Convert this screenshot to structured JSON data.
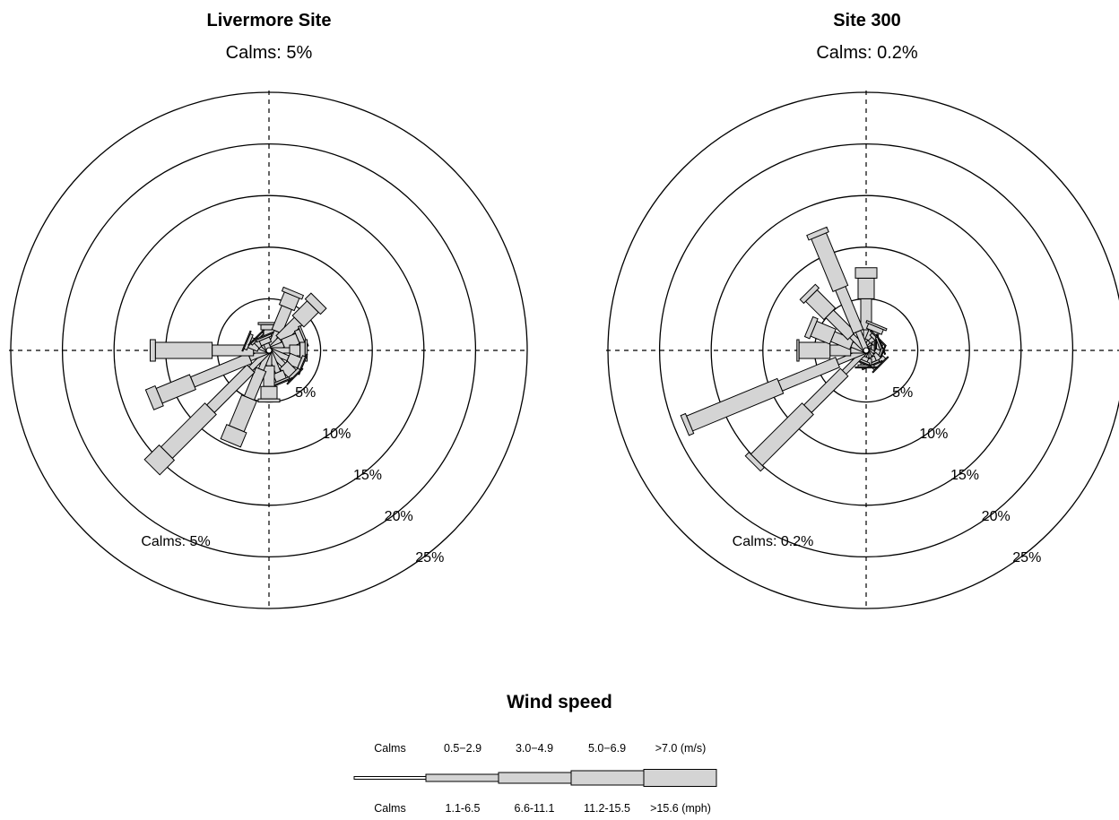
{
  "chart_data": [
    {
      "type": "windrose",
      "title": "Livermore Site",
      "subtitle": "Calms: 5%",
      "calms_label": "Calms: 5%",
      "calms_percent": 5,
      "ring_labels": [
        "5%",
        "10%",
        "15%",
        "20%",
        "25%"
      ],
      "rmax": 25,
      "directions_deg": [
        0,
        22.5,
        45,
        67.5,
        90,
        112.5,
        135,
        157.5,
        180,
        202.5,
        225,
        247.5,
        270,
        292.5,
        315,
        337.5
      ],
      "speed_bins": [
        "0.5-2.9",
        "3.0-4.9",
        "5.0-6.9",
        ">7.0"
      ],
      "frequencies_percent": [
        [
          1.0,
          1.0,
          0.5,
          0.2
        ],
        [
          2.0,
          2.5,
          1.3,
          0.4
        ],
        [
          1.5,
          2.5,
          2.0,
          0.8
        ],
        [
          1.5,
          1.5,
          0.5,
          0.2
        ],
        [
          2.0,
          1.0,
          0.5,
          0.2
        ],
        [
          2.0,
          1.2,
          0.3,
          0.1
        ],
        [
          2.0,
          1.2,
          0.3,
          0.1
        ],
        [
          2.3,
          0.8,
          0.2,
          0.1
        ],
        [
          1.5,
          2.0,
          1.2,
          0.3
        ],
        [
          2.0,
          3.0,
          3.2,
          1.5
        ],
        [
          2.5,
          5.5,
          6.0,
          2.0
        ],
        [
          2.0,
          6.0,
          3.5,
          1.0
        ],
        [
          1.5,
          4.0,
          5.5,
          0.5
        ],
        [
          1.0,
          1.0,
          0.3,
          0.1
        ],
        [
          0.8,
          0.7,
          0.2,
          0.1
        ],
        [
          0.7,
          0.5,
          0.2,
          0.1
        ]
      ]
    },
    {
      "type": "windrose",
      "title": "Site 300",
      "subtitle": "Calms: 0.2%",
      "calms_label": "Calms: 0.2%",
      "calms_percent": 0.2,
      "ring_labels": [
        "5%",
        "10%",
        "15%",
        "20%",
        "25%"
      ],
      "rmax": 25,
      "directions_deg": [
        0,
        22.5,
        45,
        67.5,
        90,
        112.5,
        135,
        157.5,
        180,
        202.5,
        225,
        247.5,
        270,
        292.5,
        315,
        337.5
      ],
      "speed_bins": [
        "0.5-2.9",
        "3.0-4.9",
        "5.0-6.9",
        ">7.0"
      ],
      "frequencies_percent": [
        [
          2.0,
          3.0,
          2.0,
          1.0
        ],
        [
          1.0,
          1.0,
          0.5,
          0.2
        ],
        [
          0.8,
          0.5,
          0.3,
          0.1
        ],
        [
          0.8,
          0.5,
          0.2,
          0.1
        ],
        [
          0.5,
          0.3,
          0.1,
          0.1
        ],
        [
          0.8,
          0.5,
          0.2,
          0.1
        ],
        [
          0.8,
          0.7,
          0.4,
          0.1
        ],
        [
          0.8,
          0.5,
          0.2,
          0.1
        ],
        [
          0.8,
          0.6,
          0.2,
          0.1
        ],
        [
          0.6,
          0.4,
          0.2,
          0.1
        ],
        [
          3.0,
          5.0,
          7.0,
          0.5
        ],
        [
          3.0,
          6.0,
          9.5,
          0.5
        ],
        [
          1.5,
          2.0,
          3.0,
          0.2
        ],
        [
          1.5,
          2.0,
          2.0,
          0.5
        ],
        [
          2.0,
          3.0,
          2.5,
          0.5
        ],
        [
          2.0,
          4.5,
          5.5,
          0.5
        ]
      ]
    }
  ],
  "legend": {
    "title": "Wind speed",
    "ms_labels": [
      "Calms",
      "0.5−2.9",
      "3.0−4.9",
      "5.0−6.9",
      ">7.0 (m/s)"
    ],
    "mph_labels": [
      "Calms",
      "1.1-6.5",
      "6.6-11.1",
      "11.2-15.5",
      ">15.6 (mph)"
    ]
  },
  "colors": {
    "petal_fill": "#d4d4d4",
    "stroke": "#000000"
  }
}
